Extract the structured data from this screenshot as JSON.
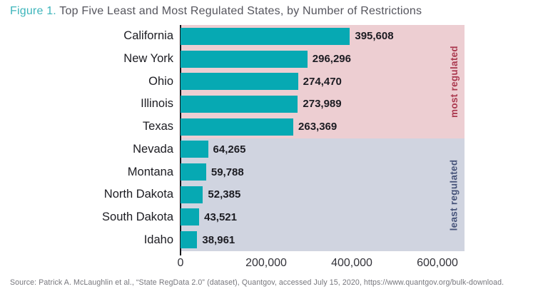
{
  "title": {
    "figure_label": "Figure 1.",
    "text": " Top Five Least and Most Regulated States, by Number of Restrictions"
  },
  "source": "Source: Patrick A. McLaughlin et al., “State RegData 2.0” (dataset), Quantgov, accessed July 15, 2020, https://www.quantgov.org/bulk-download.",
  "chart_data": {
    "type": "bar",
    "orientation": "horizontal",
    "title": "Top Five Least and Most Regulated States, by Number of Restrictions",
    "xlabel": "",
    "ylabel": "",
    "categories": [
      "California",
      "New York",
      "Ohio",
      "Illinois",
      "Texas",
      "Nevada",
      "Montana",
      "North Dakota",
      "South Dakota",
      "Idaho"
    ],
    "values": [
      395608,
      296296,
      274470,
      273989,
      263369,
      64265,
      59788,
      52385,
      43521,
      38961
    ],
    "value_labels": [
      "395,608",
      "296,296",
      "274,470",
      "273,989",
      "263,369",
      "64,265",
      "59,788",
      "52,385",
      "43,521",
      "38,961"
    ],
    "groups": [
      {
        "label": "most regulated",
        "states": [
          "California",
          "New York",
          "Ohio",
          "Illinois",
          "Texas"
        ],
        "band_color": "#edced2",
        "label_color": "#ab3a50"
      },
      {
        "label": "least regulated",
        "states": [
          "Nevada",
          "Montana",
          "North Dakota",
          "South Dakota",
          "Idaho"
        ],
        "band_color": "#d0d4e0",
        "label_color": "#47547a"
      }
    ],
    "x_ticks": [
      0,
      200000,
      400000,
      600000
    ],
    "x_tick_labels": [
      "0",
      "200,000",
      "400,000",
      "600,000"
    ],
    "xlim": [
      0,
      663333
    ],
    "bar_color": "#06a9b3",
    "axis_color": "#15151a",
    "grid": false,
    "legend_position": "none"
  }
}
